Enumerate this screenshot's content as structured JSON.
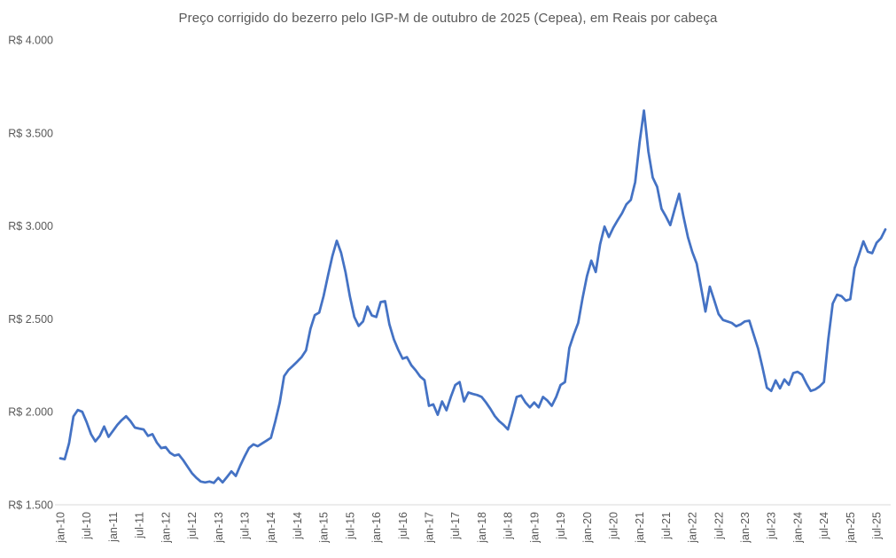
{
  "chart_title": "Preço corrigido do bezerro pelo IGP-M de outubro de 2025 (Cepea), em Reais por cabeça",
  "colors": {
    "line": "#4472C4",
    "axis_line": "#D9D9D9",
    "tick_text": "#595959",
    "title_text": "#595959",
    "background": "#FFFFFF"
  },
  "chart_data": {
    "type": "line",
    "title": "Preço corrigido do bezerro pelo IGP-M de outubro de 2025 (Cepea), em Reais por cabeça",
    "x_frequency": "monthly",
    "x_start_label": "jan-10",
    "x_tick_labels": [
      "jan-10",
      "jul-10",
      "jan-11",
      "jul-11",
      "jan-12",
      "jul-12",
      "jan-13",
      "jul-13",
      "jan-14",
      "jul-14",
      "jan-15",
      "jul-15",
      "jan-16",
      "jul-16",
      "jan-17",
      "jul-17",
      "jan-18",
      "jul-18",
      "jan-19",
      "jul-19",
      "jan-20",
      "jul-20",
      "jan-21",
      "jul-21",
      "jan-22",
      "jul-22",
      "jan-23",
      "jul-23",
      "jan-24",
      "jul-24",
      "jan-25",
      "jul-25"
    ],
    "x_tick_every_n_points": 6,
    "y_ticks": [
      1500,
      2000,
      2500,
      3000,
      3500,
      4000
    ],
    "y_tick_labels": [
      "R$ 1.500",
      "R$ 2.000",
      "R$ 2.500",
      "R$ 3.000",
      "R$ 3.500",
      "R$ 4.000"
    ],
    "ylim": [
      1500,
      4000
    ],
    "grid": false,
    "legend": "none",
    "values": [
      1750,
      1745,
      1830,
      1975,
      2010,
      2000,
      1945,
      1880,
      1841,
      1870,
      1921,
      1865,
      1897,
      1930,
      1955,
      1976,
      1950,
      1915,
      1910,
      1905,
      1870,
      1880,
      1835,
      1805,
      1810,
      1780,
      1765,
      1770,
      1740,
      1705,
      1670,
      1645,
      1625,
      1620,
      1625,
      1618,
      1645,
      1620,
      1650,
      1680,
      1655,
      1710,
      1760,
      1805,
      1825,
      1815,
      1830,
      1845,
      1860,
      1950,
      2048,
      2192,
      2225,
      2247,
      2270,
      2295,
      2330,
      2446,
      2520,
      2534,
      2622,
      2733,
      2837,
      2920,
      2855,
      2750,
      2620,
      2510,
      2462,
      2486,
      2566,
      2518,
      2510,
      2590,
      2595,
      2470,
      2390,
      2334,
      2286,
      2294,
      2250,
      2223,
      2190,
      2170,
      2032,
      2040,
      1984,
      2056,
      2008,
      2080,
      2144,
      2160,
      2056,
      2104,
      2096,
      2090,
      2080,
      2050,
      2016,
      1977,
      1950,
      1930,
      1905,
      1990,
      2080,
      2088,
      2050,
      2024,
      2050,
      2024,
      2080,
      2060,
      2032,
      2080,
      2144,
      2160,
      2343,
      2415,
      2478,
      2610,
      2730,
      2813,
      2752,
      2900,
      2996,
      2940,
      2990,
      3030,
      3068,
      3116,
      3140,
      3235,
      3450,
      3620,
      3400,
      3260,
      3210,
      3092,
      3050,
      3004,
      3090,
      3172,
      3050,
      2940,
      2860,
      2797,
      2670,
      2539,
      2673,
      2600,
      2526,
      2494,
      2486,
      2478,
      2460,
      2470,
      2486,
      2490,
      2415,
      2340,
      2240,
      2130,
      2112,
      2169,
      2126,
      2174,
      2145,
      2208,
      2215,
      2200,
      2152,
      2112,
      2120,
      2136,
      2160,
      2390,
      2582,
      2630,
      2622,
      2598,
      2606,
      2773,
      2845,
      2917,
      2861,
      2853,
      2909,
      2933,
      2981
    ]
  }
}
